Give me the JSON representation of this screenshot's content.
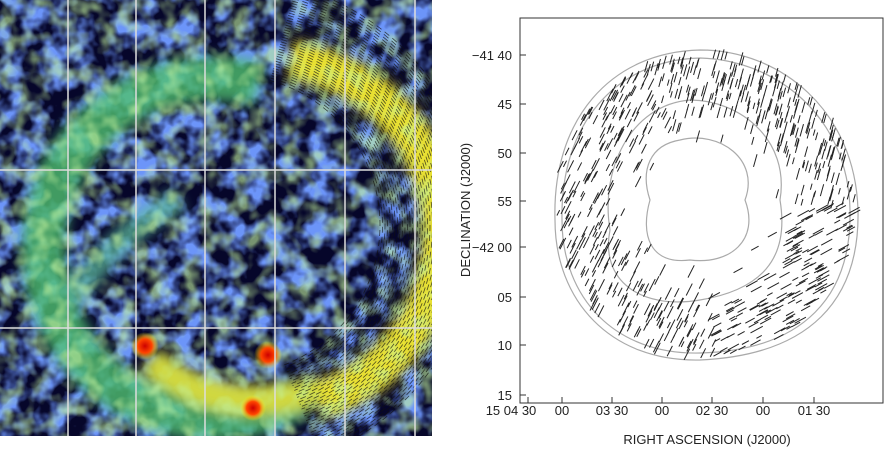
{
  "right_panel": {
    "y_label": "DECLINATION (J2000)",
    "x_label": "RIGHT ASCENSION (J2000)",
    "y_ticks": [
      "−41 40",
      "45",
      "50",
      "55",
      "−42 00",
      "05",
      "10",
      "15"
    ],
    "x_ticks": [
      "15 04 30",
      "00",
      "03 30",
      "00",
      "02 30",
      "00",
      "01 30"
    ]
  }
}
